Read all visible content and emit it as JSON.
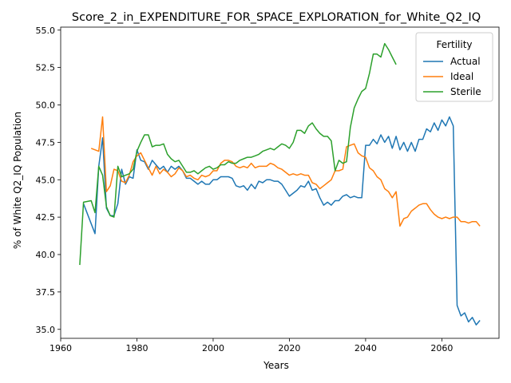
{
  "chart_data": {
    "type": "line",
    "title": "Score_2_in_EXPENDITURE_FOR_SPACE_EXPLORATION_for_White_Q2_IQ",
    "xlabel": "Years",
    "ylabel": "% of White Q2_IQ Population",
    "xlim": [
      1960,
      2075
    ],
    "ylim": [
      34.4,
      55.2
    ],
    "xticks": [
      1960,
      1980,
      2000,
      2020,
      2040,
      2060
    ],
    "yticks": [
      35.0,
      37.5,
      40.0,
      42.5,
      45.0,
      47.5,
      50.0,
      52.5,
      55.0
    ],
    "ytick_labels": [
      "35.0",
      "37.5",
      "40.0",
      "42.5",
      "45.0",
      "47.5",
      "50.0",
      "52.5",
      "55.0"
    ],
    "grid": false,
    "legend": {
      "title": "Fertility",
      "placement": "top-right"
    },
    "series": [
      {
        "name": "Actual",
        "color": "#1f77b4",
        "points": [
          [
            1966,
            43.4
          ],
          [
            1969,
            41.4
          ],
          [
            1970,
            45.9
          ],
          [
            1971,
            47.8
          ],
          [
            1972,
            43.1
          ],
          [
            1973,
            42.6
          ],
          [
            1974,
            42.6
          ],
          [
            1975,
            43.4
          ],
          [
            1976,
            45.7
          ],
          [
            1977,
            44.7
          ],
          [
            1978,
            45.2
          ],
          [
            1979,
            45.1
          ],
          [
            1980,
            47.0
          ],
          [
            1981,
            46.3
          ],
          [
            1982,
            46.2
          ],
          [
            1983,
            45.7
          ],
          [
            1984,
            46.3
          ],
          [
            1985,
            46.0
          ],
          [
            1986,
            45.7
          ],
          [
            1987,
            45.9
          ],
          [
            1988,
            45.5
          ],
          [
            1989,
            45.9
          ],
          [
            1990,
            45.7
          ],
          [
            1991,
            45.9
          ],
          [
            1992,
            45.6
          ],
          [
            1993,
            45.1
          ],
          [
            1994,
            45.1
          ],
          [
            1995,
            44.9
          ],
          [
            1996,
            44.7
          ],
          [
            1997,
            44.9
          ],
          [
            1998,
            44.7
          ],
          [
            1999,
            44.7
          ],
          [
            2000,
            45.0
          ],
          [
            2001,
            45.0
          ],
          [
            2002,
            45.2
          ],
          [
            2003,
            45.2
          ],
          [
            2004,
            45.2
          ],
          [
            2005,
            45.1
          ],
          [
            2006,
            44.6
          ],
          [
            2007,
            44.5
          ],
          [
            2008,
            44.6
          ],
          [
            2009,
            44.3
          ],
          [
            2010,
            44.7
          ],
          [
            2011,
            44.4
          ],
          [
            2012,
            44.9
          ],
          [
            2013,
            44.8
          ],
          [
            2014,
            45.0
          ],
          [
            2015,
            45.0
          ],
          [
            2016,
            44.9
          ],
          [
            2017,
            44.9
          ],
          [
            2018,
            44.7
          ],
          [
            2019,
            44.3
          ],
          [
            2020,
            43.9
          ],
          [
            2021,
            44.1
          ],
          [
            2022,
            44.3
          ],
          [
            2023,
            44.6
          ],
          [
            2024,
            44.5
          ],
          [
            2025,
            44.9
          ],
          [
            2026,
            44.3
          ],
          [
            2027,
            44.4
          ],
          [
            2028,
            43.8
          ],
          [
            2029,
            43.3
          ],
          [
            2030,
            43.5
          ],
          [
            2031,
            43.3
          ],
          [
            2032,
            43.6
          ],
          [
            2033,
            43.6
          ],
          [
            2034,
            43.9
          ],
          [
            2035,
            44.0
          ],
          [
            2036,
            43.8
          ],
          [
            2037,
            43.9
          ],
          [
            2038,
            43.8
          ],
          [
            2039,
            43.8
          ],
          [
            2040,
            47.3
          ],
          [
            2041,
            47.3
          ],
          [
            2042,
            47.7
          ],
          [
            2043,
            47.4
          ],
          [
            2044,
            48.0
          ],
          [
            2045,
            47.5
          ],
          [
            2046,
            47.9
          ],
          [
            2047,
            47.1
          ],
          [
            2048,
            47.9
          ],
          [
            2049,
            47.0
          ],
          [
            2050,
            47.5
          ],
          [
            2051,
            46.9
          ],
          [
            2052,
            47.5
          ],
          [
            2053,
            46.9
          ],
          [
            2054,
            47.7
          ],
          [
            2055,
            47.7
          ],
          [
            2056,
            48.4
          ],
          [
            2057,
            48.2
          ],
          [
            2058,
            48.8
          ],
          [
            2059,
            48.3
          ],
          [
            2060,
            49.0
          ],
          [
            2061,
            48.6
          ],
          [
            2062,
            49.2
          ],
          [
            2063,
            48.6
          ],
          [
            2064,
            36.6
          ],
          [
            2065,
            35.9
          ],
          [
            2066,
            36.1
          ],
          [
            2067,
            35.5
          ],
          [
            2068,
            35.8
          ],
          [
            2069,
            35.3
          ],
          [
            2070,
            35.6
          ]
        ]
      },
      {
        "name": "Ideal",
        "color": "#ff7f0e",
        "points": [
          [
            1968,
            47.1
          ],
          [
            1970,
            46.9
          ],
          [
            1971,
            49.2
          ],
          [
            1972,
            44.2
          ],
          [
            1973,
            44.6
          ],
          [
            1974,
            45.7
          ],
          [
            1975,
            45.6
          ],
          [
            1976,
            44.9
          ],
          [
            1977,
            44.8
          ],
          [
            1978,
            45.3
          ],
          [
            1979,
            46.2
          ],
          [
            1980,
            46.6
          ],
          [
            1981,
            46.8
          ],
          [
            1982,
            46.3
          ],
          [
            1983,
            45.8
          ],
          [
            1984,
            45.3
          ],
          [
            1985,
            45.9
          ],
          [
            1986,
            45.4
          ],
          [
            1987,
            45.7
          ],
          [
            1988,
            45.5
          ],
          [
            1989,
            45.2
          ],
          [
            1990,
            45.4
          ],
          [
            1991,
            45.8
          ],
          [
            1992,
            45.6
          ],
          [
            1993,
            45.2
          ],
          [
            1994,
            45.3
          ],
          [
            1995,
            45.1
          ],
          [
            1996,
            45.0
          ],
          [
            1997,
            45.3
          ],
          [
            1998,
            45.2
          ],
          [
            1999,
            45.3
          ],
          [
            2000,
            45.6
          ],
          [
            2001,
            45.6
          ],
          [
            2002,
            46.1
          ],
          [
            2003,
            46.3
          ],
          [
            2004,
            46.3
          ],
          [
            2005,
            46.2
          ],
          [
            2006,
            45.9
          ],
          [
            2007,
            45.8
          ],
          [
            2008,
            45.9
          ],
          [
            2009,
            45.8
          ],
          [
            2010,
            46.1
          ],
          [
            2011,
            45.8
          ],
          [
            2012,
            45.9
          ],
          [
            2013,
            45.9
          ],
          [
            2014,
            45.9
          ],
          [
            2015,
            46.1
          ],
          [
            2016,
            46.0
          ],
          [
            2017,
            45.8
          ],
          [
            2018,
            45.7
          ],
          [
            2019,
            45.5
          ],
          [
            2020,
            45.3
          ],
          [
            2021,
            45.4
          ],
          [
            2022,
            45.3
          ],
          [
            2023,
            45.4
          ],
          [
            2024,
            45.3
          ],
          [
            2025,
            45.3
          ],
          [
            2026,
            44.8
          ],
          [
            2027,
            44.7
          ],
          [
            2028,
            44.4
          ],
          [
            2029,
            44.6
          ],
          [
            2030,
            44.8
          ],
          [
            2031,
            45.0
          ],
          [
            2032,
            45.6
          ],
          [
            2033,
            45.6
          ],
          [
            2034,
            45.7
          ],
          [
            2035,
            47.2
          ],
          [
            2036,
            47.3
          ],
          [
            2037,
            47.4
          ],
          [
            2038,
            46.8
          ],
          [
            2039,
            46.6
          ],
          [
            2040,
            46.5
          ],
          [
            2041,
            45.8
          ],
          [
            2042,
            45.6
          ],
          [
            2043,
            45.2
          ],
          [
            2044,
            45.0
          ],
          [
            2045,
            44.4
          ],
          [
            2046,
            44.2
          ],
          [
            2047,
            43.8
          ],
          [
            2048,
            44.2
          ],
          [
            2049,
            41.9
          ],
          [
            2050,
            42.4
          ],
          [
            2051,
            42.5
          ],
          [
            2052,
            42.9
          ],
          [
            2053,
            43.1
          ],
          [
            2054,
            43.3
          ],
          [
            2055,
            43.4
          ],
          [
            2056,
            43.4
          ],
          [
            2057,
            43.0
          ],
          [
            2058,
            42.7
          ],
          [
            2059,
            42.5
          ],
          [
            2060,
            42.4
          ],
          [
            2061,
            42.5
          ],
          [
            2062,
            42.4
          ],
          [
            2063,
            42.5
          ],
          [
            2064,
            42.5
          ],
          [
            2065,
            42.2
          ],
          [
            2066,
            42.2
          ],
          [
            2067,
            42.1
          ],
          [
            2068,
            42.2
          ],
          [
            2069,
            42.2
          ],
          [
            2070,
            41.9
          ]
        ]
      },
      {
        "name": "Sterile",
        "color": "#2ca02c",
        "points": [
          [
            1965,
            39.3
          ],
          [
            1966,
            43.5
          ],
          [
            1968,
            43.6
          ],
          [
            1969,
            42.8
          ],
          [
            1970,
            45.9
          ],
          [
            1971,
            45.3
          ],
          [
            1972,
            43.2
          ],
          [
            1973,
            42.6
          ],
          [
            1974,
            42.5
          ],
          [
            1975,
            45.9
          ],
          [
            1976,
            45.2
          ],
          [
            1977,
            45.3
          ],
          [
            1978,
            45.4
          ],
          [
            1979,
            45.7
          ],
          [
            1980,
            46.9
          ],
          [
            1981,
            47.5
          ],
          [
            1982,
            48.0
          ],
          [
            1983,
            48.0
          ],
          [
            1984,
            47.2
          ],
          [
            1985,
            47.3
          ],
          [
            1986,
            47.3
          ],
          [
            1987,
            47.4
          ],
          [
            1988,
            46.7
          ],
          [
            1989,
            46.4
          ],
          [
            1990,
            46.2
          ],
          [
            1991,
            46.3
          ],
          [
            1992,
            45.9
          ],
          [
            1993,
            45.5
          ],
          [
            1994,
            45.5
          ],
          [
            1995,
            45.6
          ],
          [
            1996,
            45.4
          ],
          [
            1997,
            45.6
          ],
          [
            1998,
            45.8
          ],
          [
            1999,
            45.9
          ],
          [
            2000,
            45.7
          ],
          [
            2001,
            45.8
          ],
          [
            2002,
            46.0
          ],
          [
            2003,
            46.0
          ],
          [
            2004,
            46.2
          ],
          [
            2005,
            46.1
          ],
          [
            2006,
            46.1
          ],
          [
            2007,
            46.3
          ],
          [
            2008,
            46.4
          ],
          [
            2009,
            46.5
          ],
          [
            2010,
            46.5
          ],
          [
            2011,
            46.6
          ],
          [
            2012,
            46.7
          ],
          [
            2013,
            46.9
          ],
          [
            2014,
            47.0
          ],
          [
            2015,
            47.1
          ],
          [
            2016,
            47.0
          ],
          [
            2017,
            47.2
          ],
          [
            2018,
            47.4
          ],
          [
            2019,
            47.3
          ],
          [
            2020,
            47.1
          ],
          [
            2021,
            47.5
          ],
          [
            2022,
            48.3
          ],
          [
            2023,
            48.3
          ],
          [
            2024,
            48.1
          ],
          [
            2025,
            48.6
          ],
          [
            2026,
            48.8
          ],
          [
            2027,
            48.4
          ],
          [
            2028,
            48.1
          ],
          [
            2029,
            47.9
          ],
          [
            2030,
            47.9
          ],
          [
            2031,
            47.6
          ],
          [
            2032,
            45.6
          ],
          [
            2033,
            46.3
          ],
          [
            2034,
            46.1
          ],
          [
            2035,
            46.2
          ],
          [
            2036,
            48.5
          ],
          [
            2037,
            49.8
          ],
          [
            2038,
            50.4
          ],
          [
            2039,
            50.9
          ],
          [
            2040,
            51.1
          ],
          [
            2041,
            52.1
          ],
          [
            2042,
            53.4
          ],
          [
            2043,
            53.4
          ],
          [
            2044,
            53.2
          ],
          [
            2045,
            54.1
          ],
          [
            2046,
            53.7
          ],
          [
            2047,
            53.2
          ],
          [
            2048,
            52.7
          ]
        ]
      }
    ]
  }
}
